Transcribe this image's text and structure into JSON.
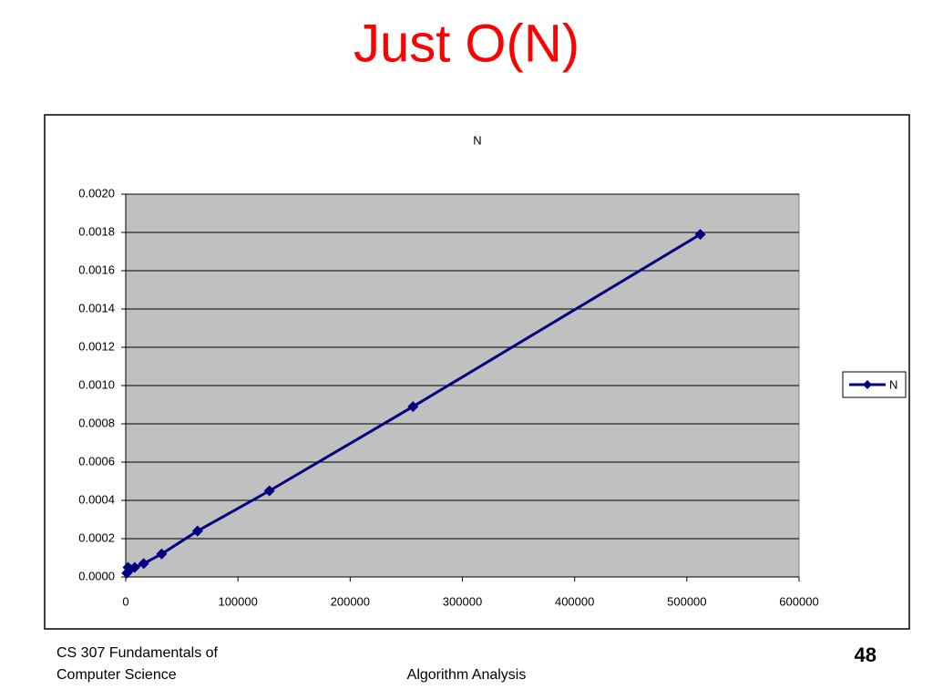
{
  "slide": {
    "title": "Just O(N)",
    "footer_left": [
      "CS 307 Fundamentals of",
      "Computer Science"
    ],
    "footer_center": "Algorithm Analysis",
    "page_number": "48"
  },
  "chart_data": {
    "type": "line",
    "title": "N",
    "x": [
      1000,
      2000,
      4000,
      8000,
      16000,
      32000,
      64000,
      128000,
      256000,
      512000
    ],
    "series": [
      {
        "name": "N",
        "color": "#000080",
        "values": [
          2e-05,
          5e-05,
          4e-05,
          5e-05,
          7e-05,
          0.00012,
          0.00024,
          0.00045,
          0.00089,
          0.00179
        ]
      }
    ],
    "xlim": [
      0,
      600000
    ],
    "xticks": [
      0,
      100000,
      200000,
      300000,
      400000,
      500000,
      600000
    ],
    "ylim": [
      0,
      0.002
    ],
    "yticks": [
      {
        "value": 0,
        "label": "0.0000"
      },
      {
        "value": 0.0002,
        "label": "0.0002"
      },
      {
        "value": 0.0004,
        "label": "0.0004"
      },
      {
        "value": 0.0006,
        "label": "0.0006"
      },
      {
        "value": 0.0008,
        "label": "0.0008"
      },
      {
        "value": 0.001,
        "label": "0.0010"
      },
      {
        "value": 0.0012,
        "label": "0.0012"
      },
      {
        "value": 0.0014,
        "label": "0.0014"
      },
      {
        "value": 0.0016,
        "label": "0.0016"
      },
      {
        "value": 0.0018,
        "label": "0.0018"
      },
      {
        "value": 0.002,
        "label": "0.0020"
      }
    ],
    "grid": true,
    "plot_background": "#c0c0c0",
    "legend": "right"
  }
}
